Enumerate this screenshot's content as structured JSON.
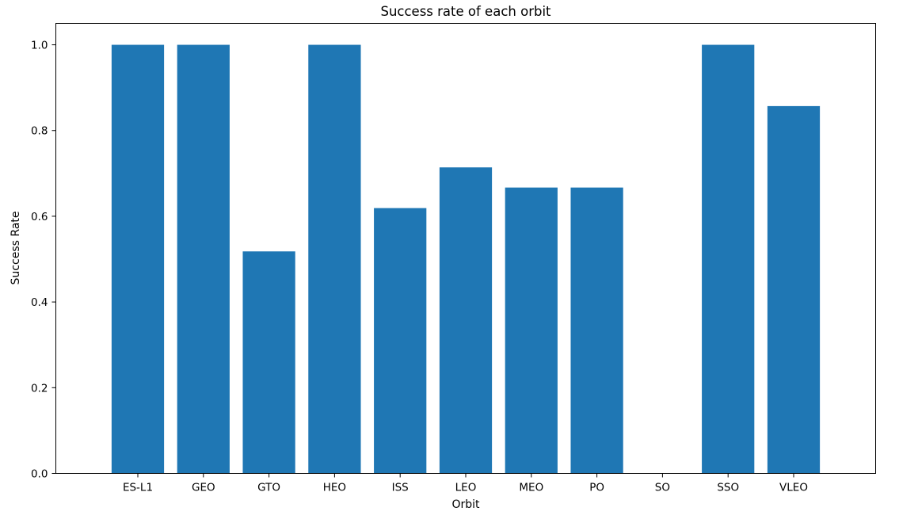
{
  "chart_data": {
    "type": "bar",
    "title": "Success rate of each orbit",
    "xlabel": "Orbit",
    "ylabel": "Success Rate",
    "categories": [
      "ES-L1",
      "GEO",
      "GTO",
      "HEO",
      "ISS",
      "LEO",
      "MEO",
      "PO",
      "SO",
      "SSO",
      "VLEO"
    ],
    "values": [
      1.0,
      1.0,
      0.518,
      1.0,
      0.619,
      0.714,
      0.667,
      0.667,
      0.0,
      1.0,
      0.857
    ],
    "ylim": [
      0,
      1.05
    ],
    "yticks": [
      0.0,
      0.2,
      0.4,
      0.6,
      0.8,
      1.0
    ],
    "ytick_labels": [
      "0.0",
      "0.2",
      "0.4",
      "0.6",
      "0.8",
      "1.0"
    ],
    "grid": false,
    "legend": "none",
    "bar_color": "#1f77b4"
  }
}
